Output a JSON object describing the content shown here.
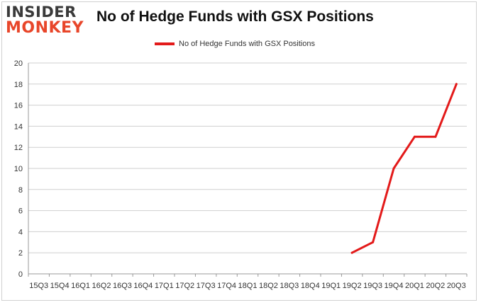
{
  "brand": {
    "line1": "INSIDER",
    "line2": "MONKEY"
  },
  "colors": {
    "series": "#e31a1a",
    "grid": "#cfcfcf",
    "axis": "#999999",
    "logo_dark": "#3a3a3a",
    "logo_accent": "#e8462a"
  },
  "chart_data": {
    "type": "line",
    "title": "No of Hedge Funds with GSX Positions",
    "xlabel": "",
    "ylabel": "",
    "ylim": [
      0,
      20
    ],
    "yticks": [
      0,
      2,
      4,
      6,
      8,
      10,
      12,
      14,
      16,
      18,
      20
    ],
    "grid": true,
    "legend_position": "top-center",
    "categories": [
      "15Q3",
      "15Q4",
      "16Q1",
      "16Q2",
      "16Q3",
      "16Q4",
      "17Q1",
      "17Q2",
      "17Q3",
      "17Q4",
      "18Q1",
      "18Q2",
      "18Q3",
      "18Q4",
      "19Q1",
      "19Q2",
      "19Q3",
      "19Q4",
      "20Q1",
      "20Q2",
      "20Q3"
    ],
    "series": [
      {
        "name": "No of Hedge Funds with GSX Positions",
        "values": [
          null,
          null,
          null,
          null,
          null,
          null,
          null,
          null,
          null,
          null,
          null,
          null,
          null,
          null,
          null,
          2,
          3,
          10,
          13,
          13,
          18
        ]
      }
    ]
  }
}
